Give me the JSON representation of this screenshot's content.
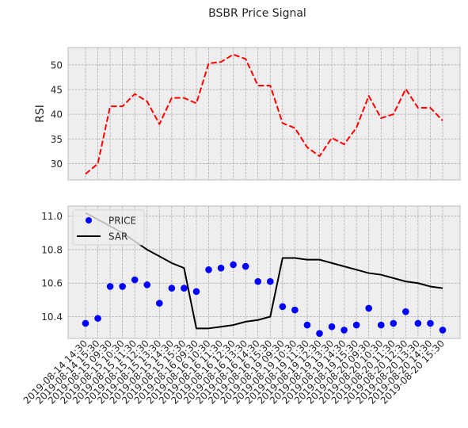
{
  "title": "BSBR Price Signal",
  "chart_data": [
    {
      "type": "line",
      "ylabel": "RSI",
      "xlabel": "",
      "ylim": [
        26.7,
        53.5
      ],
      "yticks": [
        30,
        35,
        40,
        45,
        50
      ],
      "grid": true,
      "series": [
        {
          "color": "#ff0000",
          "linestyle": "dashed",
          "values": [
            27.9,
            30.0,
            41.6,
            41.6,
            44.1,
            42.6,
            38.0,
            43.3,
            43.3,
            42.2,
            50.3,
            50.6,
            52.1,
            51.2,
            45.8,
            45.8,
            38.2,
            37.2,
            33.3,
            31.5,
            35.2,
            33.9,
            37.3,
            43.7,
            39.2,
            40.0,
            45.1,
            41.3,
            41.3,
            38.7
          ]
        }
      ]
    },
    {
      "type": "scatter",
      "ylim": [
        10.27,
        11.06
      ],
      "yticks": [
        10.4,
        10.6,
        10.8,
        11.0
      ],
      "grid": true,
      "legend_position": "upper-left",
      "series": [
        {
          "name": "PRICE",
          "color": "#0000ff",
          "marker": "circle",
          "values": [
            10.36,
            10.39,
            10.58,
            10.58,
            10.62,
            10.59,
            10.48,
            10.57,
            10.57,
            10.55,
            10.68,
            10.69,
            10.71,
            10.7,
            10.61,
            10.61,
            10.46,
            10.44,
            10.35,
            10.3,
            10.34,
            10.32,
            10.35,
            10.45,
            10.35,
            10.36,
            10.43,
            10.36,
            10.36,
            10.32
          ]
        },
        {
          "name": "SAR",
          "color": "#000000",
          "linestyle": "solid",
          "values": [
            11.02,
            10.98,
            10.94,
            10.9,
            10.85,
            10.8,
            10.76,
            10.72,
            10.69,
            10.33,
            10.33,
            10.34,
            10.35,
            10.37,
            10.38,
            10.4,
            10.75,
            10.75,
            10.74,
            10.74,
            10.72,
            10.7,
            10.68,
            10.66,
            10.65,
            10.63,
            10.61,
            10.6,
            10.58,
            10.57
          ]
        }
      ]
    }
  ],
  "x_labels": [
    "2019-08-14 14:30",
    "2019-08-14 15:30",
    "2019-08-15 09:30",
    "2019-08-15 10:30",
    "2019-08-15 11:30",
    "2019-08-15 12:30",
    "2019-08-15 13:30",
    "2019-08-15 14:30",
    "2019-08-15 15:30",
    "2019-08-16 09:30",
    "2019-08-16 10:30",
    "2019-08-16 11:30",
    "2019-08-16 12:30",
    "2019-08-16 13:30",
    "2019-08-16 14:30",
    "2019-08-16 15:30",
    "2019-08-19 09:30",
    "2019-08-19 10:30",
    "2019-08-19 11:30",
    "2019-08-19 12:30",
    "2019-08-19 13:30",
    "2019-08-19 14:30",
    "2019-08-19 15:30",
    "2019-08-20 09:30",
    "2019-08-20 10:30",
    "2019-08-20 11:30",
    "2019-08-20 12:30",
    "2019-08-20 13:30",
    "2019-08-20 14:30",
    "2019-08-20 15:30"
  ]
}
